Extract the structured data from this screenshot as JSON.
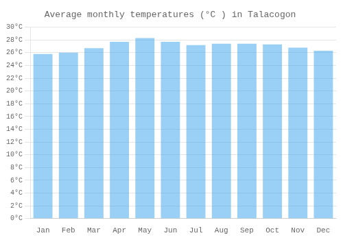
{
  "chart_data": {
    "type": "bar",
    "title": "Average monthly temperatures (°C ) in Talacogon",
    "categories": [
      "Jan",
      "Feb",
      "Mar",
      "Apr",
      "May",
      "Jun",
      "Jul",
      "Aug",
      "Sep",
      "Oct",
      "Nov",
      "Dec"
    ],
    "values": [
      25.8,
      26.0,
      26.7,
      27.7,
      28.3,
      27.7,
      27.2,
      27.4,
      27.4,
      27.3,
      26.8,
      26.3
    ],
    "ylim": [
      0,
      30
    ],
    "yticks": [
      {
        "value": 0,
        "label": "0°C"
      },
      {
        "value": 2,
        "label": "2°C"
      },
      {
        "value": 4,
        "label": "4°C"
      },
      {
        "value": 6,
        "label": "6°C"
      },
      {
        "value": 8,
        "label": "8°C"
      },
      {
        "value": 10,
        "label": "10°C"
      },
      {
        "value": 12,
        "label": "12°C"
      },
      {
        "value": 14,
        "label": "14°C"
      },
      {
        "value": 16,
        "label": "16°C"
      },
      {
        "value": 18,
        "label": "18°C"
      },
      {
        "value": 20,
        "label": "20°C"
      },
      {
        "value": 22,
        "label": "22°C"
      },
      {
        "value": 24,
        "label": "24°C"
      },
      {
        "value": 26,
        "label": "26°C"
      },
      {
        "value": 28,
        "label": "28°C"
      },
      {
        "value": 30,
        "label": "30°C"
      }
    ],
    "grid": true
  }
}
